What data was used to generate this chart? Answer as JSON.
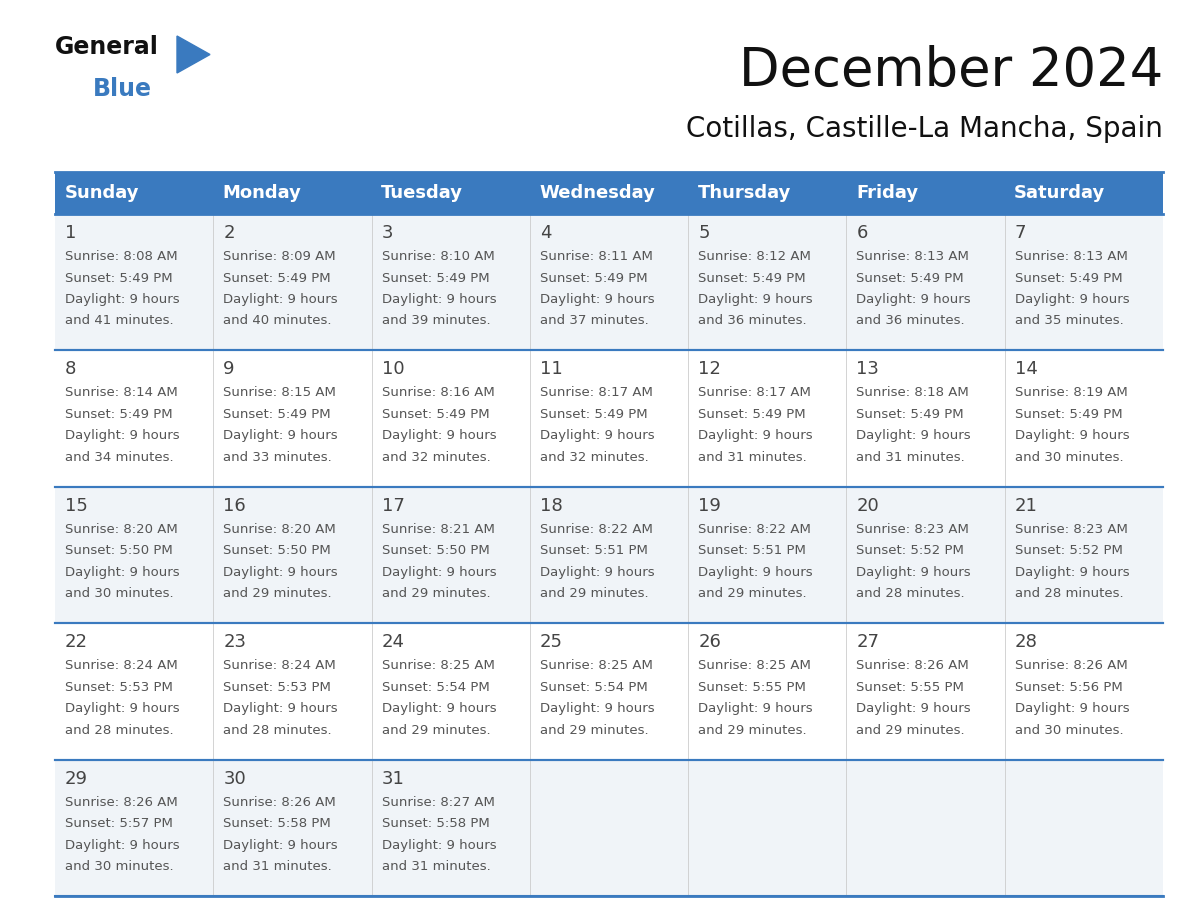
{
  "title": "December 2024",
  "subtitle": "Cotillas, Castille-La Mancha, Spain",
  "header_bg_color": "#3a7abf",
  "header_text_color": "#ffffff",
  "cell_bg_colors": [
    "#f0f4f8",
    "#ffffff"
  ],
  "border_color": "#3a7abf",
  "text_color": "#555555",
  "days_of_week": [
    "Sunday",
    "Monday",
    "Tuesday",
    "Wednesday",
    "Thursday",
    "Friday",
    "Saturday"
  ],
  "weeks": [
    [
      {
        "day": 1,
        "sunrise": "8:08 AM",
        "sunset": "5:49 PM",
        "daylight_hours": 9,
        "daylight_mins": 41
      },
      {
        "day": 2,
        "sunrise": "8:09 AM",
        "sunset": "5:49 PM",
        "daylight_hours": 9,
        "daylight_mins": 40
      },
      {
        "day": 3,
        "sunrise": "8:10 AM",
        "sunset": "5:49 PM",
        "daylight_hours": 9,
        "daylight_mins": 39
      },
      {
        "day": 4,
        "sunrise": "8:11 AM",
        "sunset": "5:49 PM",
        "daylight_hours": 9,
        "daylight_mins": 37
      },
      {
        "day": 5,
        "sunrise": "8:12 AM",
        "sunset": "5:49 PM",
        "daylight_hours": 9,
        "daylight_mins": 36
      },
      {
        "day": 6,
        "sunrise": "8:13 AM",
        "sunset": "5:49 PM",
        "daylight_hours": 9,
        "daylight_mins": 36
      },
      {
        "day": 7,
        "sunrise": "8:13 AM",
        "sunset": "5:49 PM",
        "daylight_hours": 9,
        "daylight_mins": 35
      }
    ],
    [
      {
        "day": 8,
        "sunrise": "8:14 AM",
        "sunset": "5:49 PM",
        "daylight_hours": 9,
        "daylight_mins": 34
      },
      {
        "day": 9,
        "sunrise": "8:15 AM",
        "sunset": "5:49 PM",
        "daylight_hours": 9,
        "daylight_mins": 33
      },
      {
        "day": 10,
        "sunrise": "8:16 AM",
        "sunset": "5:49 PM",
        "daylight_hours": 9,
        "daylight_mins": 32
      },
      {
        "day": 11,
        "sunrise": "8:17 AM",
        "sunset": "5:49 PM",
        "daylight_hours": 9,
        "daylight_mins": 32
      },
      {
        "day": 12,
        "sunrise": "8:17 AM",
        "sunset": "5:49 PM",
        "daylight_hours": 9,
        "daylight_mins": 31
      },
      {
        "day": 13,
        "sunrise": "8:18 AM",
        "sunset": "5:49 PM",
        "daylight_hours": 9,
        "daylight_mins": 31
      },
      {
        "day": 14,
        "sunrise": "8:19 AM",
        "sunset": "5:49 PM",
        "daylight_hours": 9,
        "daylight_mins": 30
      }
    ],
    [
      {
        "day": 15,
        "sunrise": "8:20 AM",
        "sunset": "5:50 PM",
        "daylight_hours": 9,
        "daylight_mins": 30
      },
      {
        "day": 16,
        "sunrise": "8:20 AM",
        "sunset": "5:50 PM",
        "daylight_hours": 9,
        "daylight_mins": 29
      },
      {
        "day": 17,
        "sunrise": "8:21 AM",
        "sunset": "5:50 PM",
        "daylight_hours": 9,
        "daylight_mins": 29
      },
      {
        "day": 18,
        "sunrise": "8:22 AM",
        "sunset": "5:51 PM",
        "daylight_hours": 9,
        "daylight_mins": 29
      },
      {
        "day": 19,
        "sunrise": "8:22 AM",
        "sunset": "5:51 PM",
        "daylight_hours": 9,
        "daylight_mins": 29
      },
      {
        "day": 20,
        "sunrise": "8:23 AM",
        "sunset": "5:52 PM",
        "daylight_hours": 9,
        "daylight_mins": 28
      },
      {
        "day": 21,
        "sunrise": "8:23 AM",
        "sunset": "5:52 PM",
        "daylight_hours": 9,
        "daylight_mins": 28
      }
    ],
    [
      {
        "day": 22,
        "sunrise": "8:24 AM",
        "sunset": "5:53 PM",
        "daylight_hours": 9,
        "daylight_mins": 28
      },
      {
        "day": 23,
        "sunrise": "8:24 AM",
        "sunset": "5:53 PM",
        "daylight_hours": 9,
        "daylight_mins": 28
      },
      {
        "day": 24,
        "sunrise": "8:25 AM",
        "sunset": "5:54 PM",
        "daylight_hours": 9,
        "daylight_mins": 29
      },
      {
        "day": 25,
        "sunrise": "8:25 AM",
        "sunset": "5:54 PM",
        "daylight_hours": 9,
        "daylight_mins": 29
      },
      {
        "day": 26,
        "sunrise": "8:25 AM",
        "sunset": "5:55 PM",
        "daylight_hours": 9,
        "daylight_mins": 29
      },
      {
        "day": 27,
        "sunrise": "8:26 AM",
        "sunset": "5:55 PM",
        "daylight_hours": 9,
        "daylight_mins": 29
      },
      {
        "day": 28,
        "sunrise": "8:26 AM",
        "sunset": "5:56 PM",
        "daylight_hours": 9,
        "daylight_mins": 30
      }
    ],
    [
      {
        "day": 29,
        "sunrise": "8:26 AM",
        "sunset": "5:57 PM",
        "daylight_hours": 9,
        "daylight_mins": 30
      },
      {
        "day": 30,
        "sunrise": "8:26 AM",
        "sunset": "5:58 PM",
        "daylight_hours": 9,
        "daylight_mins": 31
      },
      {
        "day": 31,
        "sunrise": "8:27 AM",
        "sunset": "5:58 PM",
        "daylight_hours": 9,
        "daylight_mins": 31
      },
      null,
      null,
      null,
      null
    ]
  ],
  "logo_general_color": "#111111",
  "logo_blue_color": "#3a7abf",
  "logo_triangle_color": "#3a7abf",
  "title_fontsize": 38,
  "subtitle_fontsize": 20,
  "header_fontsize": 13,
  "day_num_fontsize": 13,
  "cell_fontsize": 9.5
}
